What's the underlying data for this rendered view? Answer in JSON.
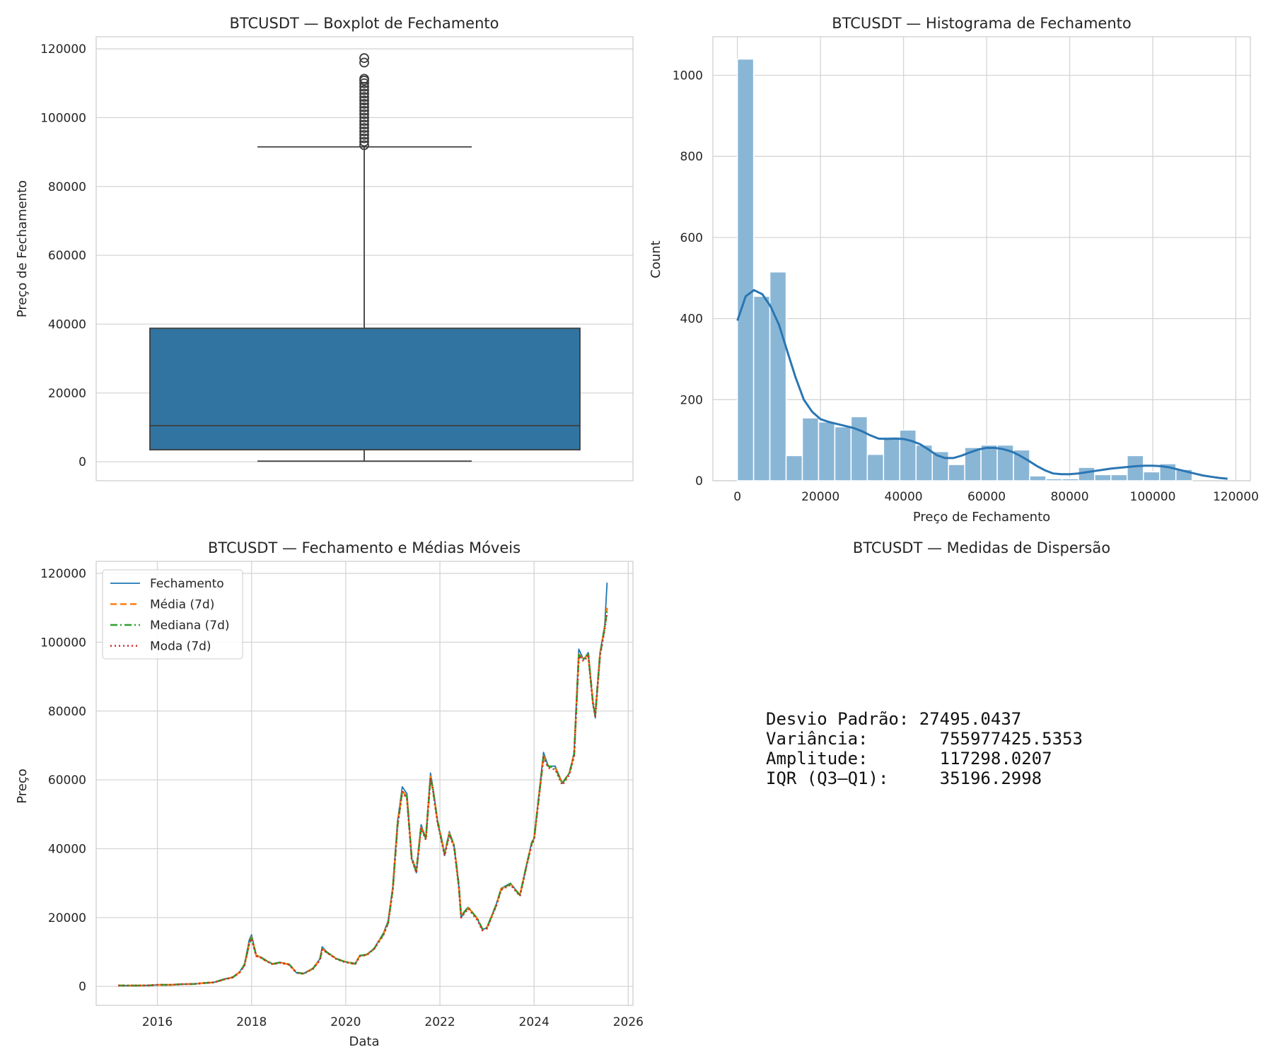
{
  "chart_data": [
    {
      "type": "boxplot",
      "title": "BTCUSDT — Boxplot de Fechamento",
      "ylabel": "Preço de Fechamento",
      "xlabel": "",
      "ylim": [
        -5500,
        123500
      ],
      "yticks": [
        0,
        20000,
        40000,
        60000,
        80000,
        100000,
        120000
      ],
      "color": "#3274a1",
      "box": {
        "whisker_low": 200,
        "q1": 3500,
        "median": 10500,
        "q3": 38800,
        "whisker_high": 91500
      },
      "outliers": [
        92000,
        93000,
        94000,
        95000,
        96000,
        97000,
        98000,
        99000,
        100000,
        101000,
        102000,
        103000,
        104000,
        105000,
        106000,
        107000,
        108000,
        109000,
        110000,
        110800,
        111300,
        116000,
        117300
      ],
      "grid": true
    },
    {
      "type": "histogram",
      "title": "BTCUSDT — Histograma de Fechamento",
      "xlabel": "Preço de Fechamento",
      "ylabel": "Count",
      "xlim": [
        -5900,
        123500
      ],
      "ylim": [
        0,
        1095
      ],
      "xticks": [
        0,
        20000,
        40000,
        60000,
        80000,
        100000,
        120000
      ],
      "yticks": [
        0,
        200,
        400,
        600,
        800,
        1000
      ],
      "bin_start": 0,
      "bin_width": 3910,
      "counts": [
        1040,
        455,
        515,
        62,
        155,
        145,
        133,
        158,
        65,
        108,
        125,
        88,
        72,
        40,
        82,
        88,
        88,
        76,
        12,
        5,
        5,
        33,
        15,
        15,
        62,
        22,
        42,
        28
      ],
      "bar_color": "#8ab6d6",
      "kde": {
        "x": [
          0,
          2000,
          4000,
          6000,
          8000,
          10000,
          12000,
          14000,
          16000,
          18000,
          20000,
          22000,
          24000,
          26000,
          28000,
          30000,
          32000,
          34000,
          36000,
          38000,
          40000,
          42000,
          44000,
          46000,
          48000,
          50000,
          52000,
          54000,
          56000,
          58000,
          60000,
          62000,
          64000,
          66000,
          68000,
          70000,
          72000,
          74000,
          76000,
          78000,
          80000,
          82000,
          84000,
          86000,
          88000,
          90000,
          92000,
          94000,
          96000,
          98000,
          100000,
          102000,
          104000,
          106000,
          108000,
          110000,
          112000,
          114000,
          116000,
          118000
        ],
        "y": [
          395,
          455,
          470,
          460,
          430,
          385,
          320,
          255,
          200,
          170,
          152,
          145,
          140,
          135,
          130,
          122,
          112,
          104,
          103,
          104,
          103,
          98,
          90,
          77,
          63,
          56,
          56,
          62,
          70,
          77,
          81,
          81,
          78,
          72,
          62,
          50,
          37,
          26,
          18,
          16,
          16,
          18,
          21,
          24,
          27,
          30,
          32,
          34,
          36,
          37,
          37,
          36,
          33,
          28,
          23,
          18,
          13,
          10,
          7,
          5
        ],
        "color": "#2a76b3"
      },
      "grid": true
    },
    {
      "type": "line",
      "title": "BTCUSDT — Fechamento e Médias Móveis",
      "xlabel": "Data",
      "ylabel": "Preço",
      "xlim": [
        2014.7,
        2026.1
      ],
      "ylim": [
        -5500,
        123500
      ],
      "xticks": [
        2016,
        2018,
        2020,
        2022,
        2024,
        2026
      ],
      "yticks": [
        0,
        20000,
        40000,
        60000,
        80000,
        100000,
        120000
      ],
      "legend_position": "top-left",
      "x": [
        2015.17,
        2015.5,
        2015.83,
        2016.0,
        2016.3,
        2016.5,
        2016.8,
        2017.0,
        2017.2,
        2017.4,
        2017.6,
        2017.75,
        2017.85,
        2017.95,
        2018.0,
        2018.1,
        2018.2,
        2018.3,
        2018.45,
        2018.6,
        2018.8,
        2018.95,
        2019.1,
        2019.3,
        2019.45,
        2019.5,
        2019.6,
        2019.8,
        2019.95,
        2020.2,
        2020.3,
        2020.45,
        2020.6,
        2020.8,
        2020.9,
        2021.0,
        2021.1,
        2021.2,
        2021.3,
        2021.4,
        2021.5,
        2021.6,
        2021.7,
        2021.8,
        2021.85,
        2021.95,
        2022.1,
        2022.2,
        2022.3,
        2022.4,
        2022.45,
        2022.6,
        2022.8,
        2022.9,
        2023.0,
        2023.2,
        2023.3,
        2023.5,
        2023.7,
        2023.85,
        2023.95,
        2024.0,
        2024.2,
        2024.3,
        2024.45,
        2024.6,
        2024.75,
        2024.85,
        2024.95,
        2025.05,
        2025.15,
        2025.25,
        2025.3,
        2025.4,
        2025.5,
        2025.55
      ],
      "series": [
        {
          "name": "Fechamento",
          "style": "solid",
          "color": "#1f77b4",
          "values": [
            250,
            240,
            300,
            430,
            450,
            620,
            720,
            1000,
            1150,
            2100,
            2700,
            4300,
            6500,
            13500,
            15000,
            9000,
            8500,
            7600,
            6500,
            7000,
            6400,
            4000,
            3700,
            5200,
            8000,
            11500,
            10000,
            8000,
            7300,
            6500,
            9000,
            9300,
            11000,
            15500,
            19000,
            29000,
            48000,
            58000,
            56000,
            37000,
            33000,
            47000,
            43000,
            62000,
            58000,
            48000,
            38000,
            45000,
            41000,
            29000,
            20000,
            23000,
            19500,
            16500,
            17000,
            24000,
            28500,
            30000,
            26500,
            36000,
            42000,
            43000,
            68000,
            64000,
            64000,
            59000,
            62000,
            68000,
            98000,
            95000,
            97000,
            82000,
            78000,
            97000,
            105000,
            117300
          ]
        },
        {
          "name": "Média (7d)",
          "style": "dashed",
          "color": "#ff7f0e",
          "values": [
            250,
            240,
            300,
            430,
            450,
            620,
            720,
            1000,
            1150,
            2000,
            2650,
            4200,
            6300,
            12700,
            14300,
            8900,
            8450,
            7550,
            6500,
            6950,
            6380,
            4050,
            3720,
            5150,
            7800,
            11000,
            9900,
            8050,
            7300,
            6550,
            8900,
            9250,
            10900,
            15200,
            18600,
            28500,
            47000,
            57000,
            55000,
            37500,
            33500,
            46500,
            43000,
            61000,
            57500,
            48000,
            38500,
            44500,
            41000,
            29500,
            20500,
            23000,
            19600,
            16700,
            17100,
            23800,
            28300,
            29800,
            26500,
            35800,
            41700,
            43000,
            67000,
            64000,
            63500,
            59000,
            62000,
            67500,
            96500,
            95000,
            96500,
            82500,
            79000,
            96500,
            104500,
            110000
          ]
        },
        {
          "name": "Mediana (7d)",
          "style": "dashdot",
          "color": "#2ca02c",
          "values": [
            250,
            240,
            300,
            430,
            450,
            620,
            720,
            1000,
            1150,
            1980,
            2640,
            4150,
            6200,
            12500,
            14100,
            8950,
            8400,
            7550,
            6500,
            6950,
            6380,
            4050,
            3720,
            5150,
            7800,
            10900,
            9900,
            8050,
            7300,
            6550,
            8900,
            9250,
            10900,
            15100,
            18500,
            28300,
            46800,
            56800,
            55000,
            37500,
            33500,
            46300,
            43000,
            60800,
            57500,
            48000,
            38500,
            44500,
            41000,
            29500,
            20500,
            23000,
            19600,
            16700,
            17100,
            23800,
            28300,
            29800,
            26500,
            35800,
            41600,
            43000,
            66800,
            64000,
            63500,
            59000,
            62000,
            67300,
            96300,
            95000,
            96500,
            82500,
            79000,
            96300,
            104300,
            109500
          ]
        },
        {
          "name": "Moda (7d)",
          "style": "dotted",
          "color": "#d62728",
          "values": [
            250,
            240,
            300,
            430,
            450,
            620,
            720,
            1000,
            1150,
            1950,
            2600,
            4100,
            6100,
            12300,
            13900,
            8800,
            8300,
            7450,
            6400,
            6850,
            6300,
            3950,
            3650,
            5050,
            7600,
            10700,
            9800,
            7950,
            7200,
            6400,
            8800,
            9150,
            10800,
            14900,
            18300,
            28000,
            46500,
            56500,
            54500,
            37000,
            33000,
            46000,
            42600,
            60500,
            57000,
            47500,
            38000,
            44000,
            40500,
            29000,
            20000,
            22600,
            19200,
            16300,
            16800,
            23500,
            28000,
            29500,
            26200,
            35500,
            41300,
            42600,
            66500,
            63500,
            63000,
            58500,
            61500,
            67000,
            96000,
            94500,
            96000,
            82000,
            78500,
            96000,
            104000,
            108500
          ]
        }
      ],
      "grid": true
    }
  ],
  "panel4": {
    "title": "BTCUSDT — Medidas de Dispersão",
    "lines": [
      "Desvio Padrão: 27495.0437",
      "Variância:       755977425.5353",
      "Amplitude:       117298.0207",
      "IQR (Q3–Q1):     35196.2998"
    ]
  }
}
